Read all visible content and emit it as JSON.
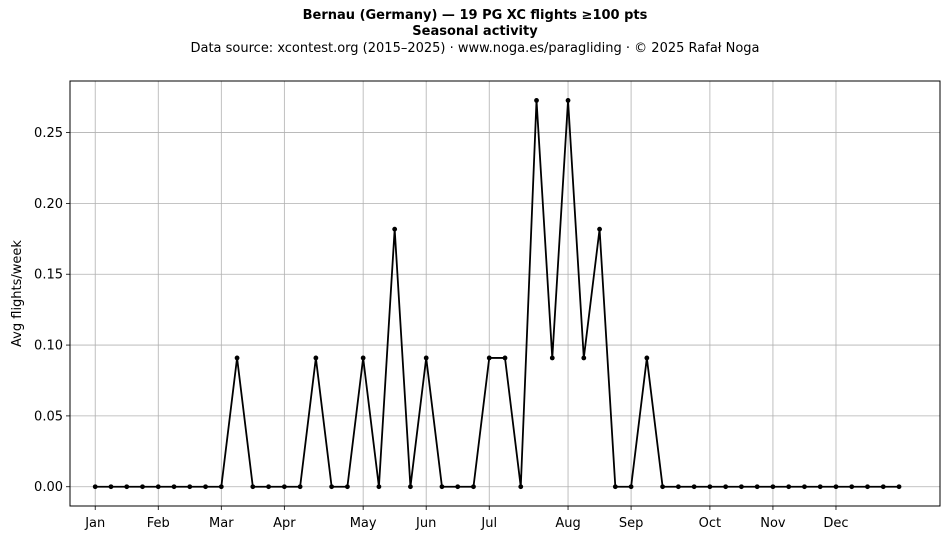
{
  "titles": {
    "title": "Bernau (Germany)  —  19 PG XC flights ≥100 pts",
    "subtitle": "Seasonal activity",
    "source": "Data source: xcontest.org (2015–2025)  ·  www.noga.es/paragliding  ·  © 2025 Rafał Noga"
  },
  "chart_data": {
    "type": "line",
    "title": "Bernau (Germany)  —  19 PG XC flights ≥100 pts",
    "subtitle": "Seasonal activity",
    "xlabel": "",
    "ylabel": "Avg flights/week",
    "x_unit": "week of year",
    "xlim": [
      -1.6,
      53.6
    ],
    "ylim": [
      -0.0136,
      0.2864
    ],
    "grid": true,
    "legend": "none",
    "line_color": "#000000",
    "grid_color": "#b0b0b0",
    "xticks": [
      {
        "label": "Jan",
        "x": 0
      },
      {
        "label": "Feb",
        "x": 4
      },
      {
        "label": "Mar",
        "x": 8
      },
      {
        "label": "Apr",
        "x": 12
      },
      {
        "label": "May",
        "x": 17
      },
      {
        "label": "Jun",
        "x": 21
      },
      {
        "label": "Jul",
        "x": 25
      },
      {
        "label": "Aug",
        "x": 30
      },
      {
        "label": "Sep",
        "x": 34
      },
      {
        "label": "Oct",
        "x": 39
      },
      {
        "label": "Nov",
        "x": 43
      },
      {
        "label": "Dec",
        "x": 47
      }
    ],
    "yticks": [
      0.0,
      0.05,
      0.1,
      0.15,
      0.2,
      0.25
    ],
    "ytick_labels": [
      "0.00",
      "0.05",
      "0.10",
      "0.15",
      "0.20",
      "0.25"
    ],
    "series": [
      {
        "values": [
          0,
          0,
          0,
          0,
          0,
          0,
          0,
          0,
          0,
          0.0909,
          0,
          0,
          0,
          0,
          0.0909,
          0,
          0,
          0.0909,
          0,
          0.1818,
          0,
          0.0909,
          0,
          0,
          0,
          0.0909,
          0.0909,
          0,
          0.2727,
          0.0909,
          0.2727,
          0.0909,
          0.1818,
          0,
          0,
          0.0909,
          0,
          0,
          0,
          0,
          0,
          0,
          0,
          0,
          0,
          0,
          0,
          0,
          0,
          0,
          0,
          0
        ]
      }
    ]
  }
}
